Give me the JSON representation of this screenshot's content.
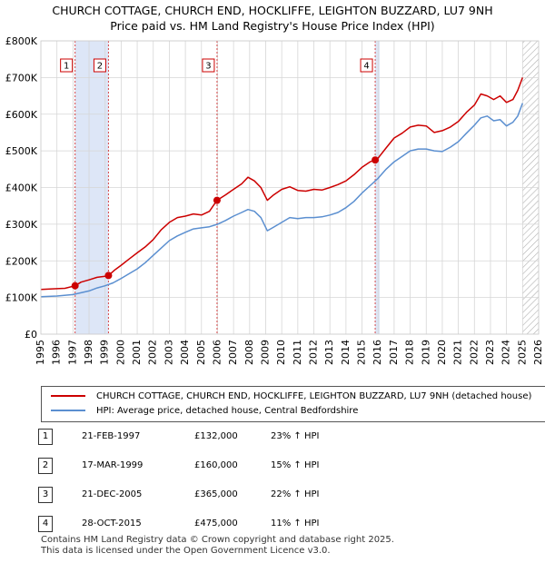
{
  "chart_data": {
    "type": "line",
    "title": "CHURCH COTTAGE, CHURCH END, HOCKLIFFE, LEIGHTON BUZZARD, LU7 9NH",
    "subtitle": "Price paid vs. HM Land Registry's House Price Index (HPI)",
    "xlabel": "",
    "ylabel": "",
    "xlim": [
      1995,
      2026
    ],
    "ylim": [
      0,
      800000
    ],
    "x_ticks": [
      "1995",
      "1996",
      "1997",
      "1998",
      "1999",
      "2000",
      "2001",
      "2002",
      "2003",
      "2004",
      "2005",
      "2006",
      "2007",
      "2008",
      "2009",
      "2010",
      "2011",
      "2012",
      "2013",
      "2014",
      "2015",
      "2016",
      "2017",
      "2018",
      "2019",
      "2020",
      "2021",
      "2022",
      "2023",
      "2024",
      "2025",
      "2026"
    ],
    "y_ticks": [
      "£0",
      "£100K",
      "£200K",
      "£300K",
      "£400K",
      "£500K",
      "£600K",
      "£700K",
      "£800K"
    ],
    "grid": true,
    "series": [
      {
        "name": "CHURCH COTTAGE, CHURCH END, HOCKLIFFE, LEIGHTON BUZZARD, LU7 9NH (detached house)",
        "color": "#cc0000",
        "points": [
          [
            1995.0,
            122000
          ],
          [
            1996.0,
            124000
          ],
          [
            1996.5,
            125000
          ],
          [
            1997.13,
            132000
          ],
          [
            1997.5,
            142000
          ],
          [
            1998.0,
            148000
          ],
          [
            1998.5,
            155000
          ],
          [
            1999.0,
            158000
          ],
          [
            1999.21,
            160000
          ],
          [
            1999.6,
            175000
          ],
          [
            2000.0,
            188000
          ],
          [
            2000.5,
            205000
          ],
          [
            2001.0,
            222000
          ],
          [
            2001.5,
            238000
          ],
          [
            2002.0,
            258000
          ],
          [
            2002.5,
            285000
          ],
          [
            2003.0,
            305000
          ],
          [
            2003.5,
            318000
          ],
          [
            2004.0,
            322000
          ],
          [
            2004.5,
            328000
          ],
          [
            2005.0,
            325000
          ],
          [
            2005.5,
            335000
          ],
          [
            2005.97,
            365000
          ],
          [
            2006.5,
            380000
          ],
          [
            2007.0,
            395000
          ],
          [
            2007.5,
            410000
          ],
          [
            2007.9,
            428000
          ],
          [
            2008.3,
            418000
          ],
          [
            2008.7,
            400000
          ],
          [
            2009.1,
            365000
          ],
          [
            2009.5,
            380000
          ],
          [
            2010.0,
            395000
          ],
          [
            2010.5,
            402000
          ],
          [
            2011.0,
            392000
          ],
          [
            2011.5,
            390000
          ],
          [
            2012.0,
            395000
          ],
          [
            2012.5,
            393000
          ],
          [
            2013.0,
            400000
          ],
          [
            2013.5,
            408000
          ],
          [
            2014.0,
            418000
          ],
          [
            2014.5,
            435000
          ],
          [
            2015.0,
            455000
          ],
          [
            2015.5,
            470000
          ],
          [
            2015.82,
            475000
          ],
          [
            2016.0,
            480000
          ],
          [
            2016.5,
            508000
          ],
          [
            2017.0,
            535000
          ],
          [
            2017.5,
            548000
          ],
          [
            2018.0,
            565000
          ],
          [
            2018.5,
            570000
          ],
          [
            2019.0,
            568000
          ],
          [
            2019.5,
            550000
          ],
          [
            2020.0,
            555000
          ],
          [
            2020.5,
            565000
          ],
          [
            2021.0,
            580000
          ],
          [
            2021.5,
            605000
          ],
          [
            2022.0,
            625000
          ],
          [
            2022.4,
            655000
          ],
          [
            2022.8,
            650000
          ],
          [
            2023.2,
            640000
          ],
          [
            2023.6,
            650000
          ],
          [
            2024.0,
            632000
          ],
          [
            2024.4,
            640000
          ],
          [
            2024.7,
            665000
          ],
          [
            2025.0,
            700000
          ]
        ]
      },
      {
        "name": "HPI: Average price, detached house, Central Bedfordshire",
        "color": "#5b8fd0",
        "points": [
          [
            1995.0,
            102000
          ],
          [
            1996.0,
            104000
          ],
          [
            1997.0,
            108000
          ],
          [
            1997.5,
            113000
          ],
          [
            1998.0,
            118000
          ],
          [
            1998.5,
            126000
          ],
          [
            1999.0,
            132000
          ],
          [
            1999.5,
            140000
          ],
          [
            2000.0,
            152000
          ],
          [
            2000.5,
            165000
          ],
          [
            2001.0,
            178000
          ],
          [
            2001.5,
            195000
          ],
          [
            2002.0,
            215000
          ],
          [
            2002.5,
            235000
          ],
          [
            2003.0,
            255000
          ],
          [
            2003.5,
            268000
          ],
          [
            2004.0,
            278000
          ],
          [
            2004.5,
            287000
          ],
          [
            2005.0,
            290000
          ],
          [
            2005.5,
            293000
          ],
          [
            2006.0,
            300000
          ],
          [
            2006.5,
            310000
          ],
          [
            2007.0,
            322000
          ],
          [
            2007.5,
            332000
          ],
          [
            2007.9,
            340000
          ],
          [
            2008.3,
            335000
          ],
          [
            2008.7,
            318000
          ],
          [
            2009.1,
            282000
          ],
          [
            2009.5,
            292000
          ],
          [
            2010.0,
            305000
          ],
          [
            2010.5,
            318000
          ],
          [
            2011.0,
            315000
          ],
          [
            2011.5,
            318000
          ],
          [
            2012.0,
            318000
          ],
          [
            2012.5,
            320000
          ],
          [
            2013.0,
            325000
          ],
          [
            2013.5,
            332000
          ],
          [
            2014.0,
            345000
          ],
          [
            2014.5,
            362000
          ],
          [
            2015.0,
            385000
          ],
          [
            2015.5,
            405000
          ],
          [
            2016.0,
            425000
          ],
          [
            2016.5,
            450000
          ],
          [
            2017.0,
            470000
          ],
          [
            2017.5,
            485000
          ],
          [
            2018.0,
            500000
          ],
          [
            2018.5,
            505000
          ],
          [
            2019.0,
            505000
          ],
          [
            2019.5,
            500000
          ],
          [
            2020.0,
            498000
          ],
          [
            2020.5,
            510000
          ],
          [
            2021.0,
            525000
          ],
          [
            2021.5,
            548000
          ],
          [
            2022.0,
            570000
          ],
          [
            2022.4,
            590000
          ],
          [
            2022.8,
            595000
          ],
          [
            2023.2,
            582000
          ],
          [
            2023.6,
            585000
          ],
          [
            2024.0,
            568000
          ],
          [
            2024.4,
            578000
          ],
          [
            2024.7,
            595000
          ],
          [
            2025.0,
            630000
          ]
        ]
      }
    ],
    "markers": [
      {
        "label": "1",
        "x": 1997.13,
        "y": 132000
      },
      {
        "label": "2",
        "x": 1999.21,
        "y": 160000
      },
      {
        "label": "3",
        "x": 2005.97,
        "y": 365000
      },
      {
        "label": "4",
        "x": 2015.82,
        "y": 475000
      }
    ],
    "shaded_spans": [
      [
        1997.13,
        1999.21
      ],
      [
        2015.82,
        2016.1
      ]
    ],
    "hatched_from": 2025.0,
    "marker_color": "#cc0000"
  },
  "legend": {
    "property_label": "CHURCH COTTAGE, CHURCH END, HOCKLIFFE, LEIGHTON BUZZARD, LU7 9NH (detached house)",
    "hpi_label": "HPI: Average price, detached house, Central Bedfordshire",
    "property_color": "#cc0000",
    "hpi_color": "#5b8fd0"
  },
  "sales": [
    {
      "num": "1",
      "date": "21-FEB-1997",
      "price": "£132,000",
      "delta": "23% ↑ HPI"
    },
    {
      "num": "2",
      "date": "17-MAR-1999",
      "price": "£160,000",
      "delta": "15% ↑ HPI"
    },
    {
      "num": "3",
      "date": "21-DEC-2005",
      "price": "£365,000",
      "delta": "22% ↑ HPI"
    },
    {
      "num": "4",
      "date": "28-OCT-2015",
      "price": "£475,000",
      "delta": "11% ↑ HPI"
    }
  ],
  "footer": {
    "line1": "Contains HM Land Registry data © Crown copyright and database right 2025.",
    "line2": "This data is licensed under the Open Government Licence v3.0."
  }
}
